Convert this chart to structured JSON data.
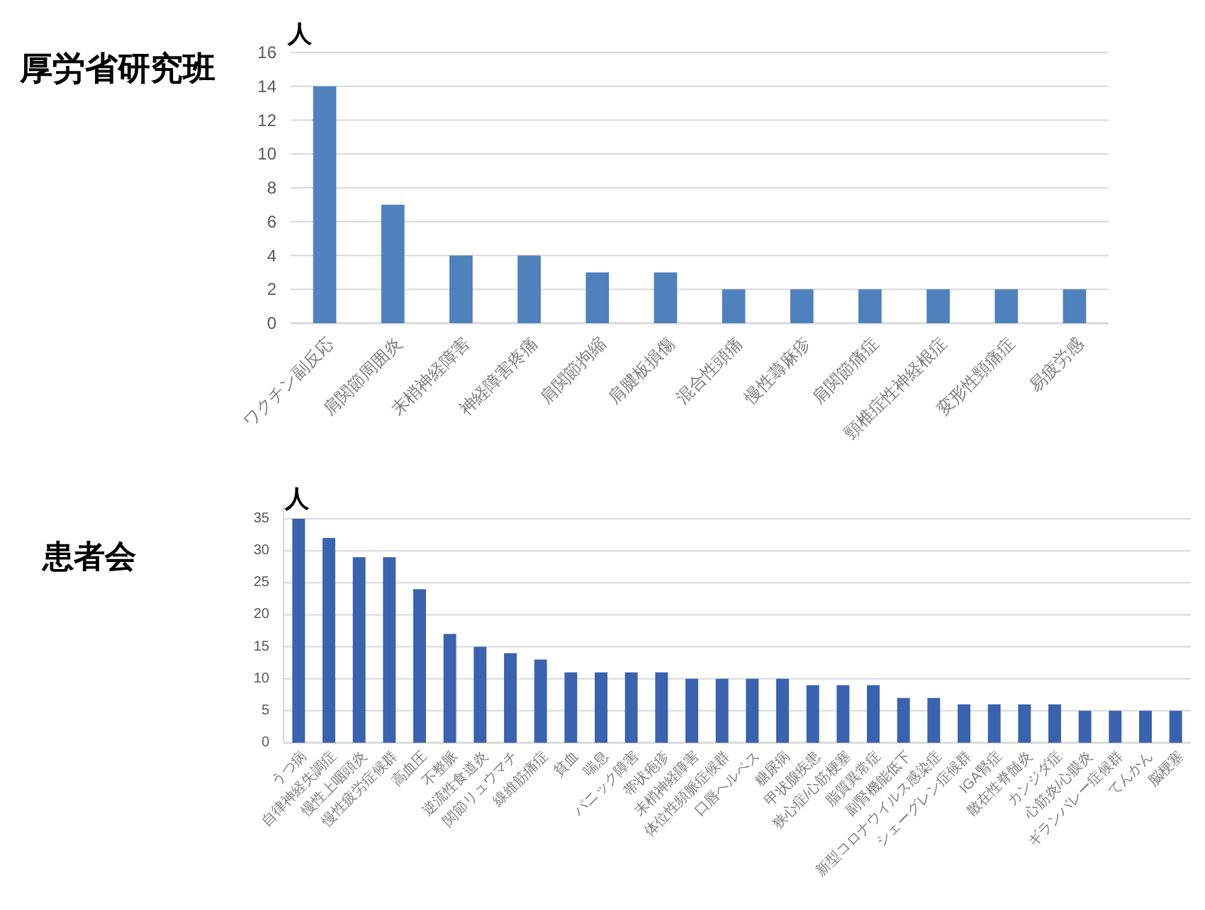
{
  "chart_data": [
    {
      "type": "bar",
      "title": "厚労省研究班",
      "ylabel": "人",
      "categories": [
        "ワクチン副反応",
        "肩関節周囲炎",
        "末梢神経障害",
        "神経障害疼痛",
        "肩関節拘縮",
        "肩腱板損傷",
        "混合性頭痛",
        "慢性蕁麻疹",
        "肩関節痛症",
        "頸椎症性神経根症",
        "変形性頸痛症",
        "易疲労感"
      ],
      "values": [
        14,
        7,
        4,
        4,
        3,
        3,
        2,
        2,
        2,
        2,
        2,
        2
      ],
      "color": "#4f81bd",
      "ylim": [
        0,
        16
      ],
      "yticks": [
        0,
        2,
        4,
        6,
        8,
        10,
        12,
        14,
        16
      ],
      "grid": "y"
    },
    {
      "type": "bar",
      "title": "患者会",
      "ylabel": "人",
      "categories": [
        "うつ病",
        "自律神経失調症",
        "慢性上咽頭炎",
        "慢性疲労症候群",
        "高血圧",
        "不整脈",
        "逆流性食道炎",
        "関節リュウマチ",
        "線維筋痛症",
        "貧血",
        "喘息",
        "パニック障害",
        "帯状疱疹",
        "末梢神経障害",
        "体位性頻脈症候群",
        "口唇ヘルペス",
        "糖尿病",
        "甲状腺疾患",
        "狭心症/心筋梗塞",
        "脂質異常症",
        "副腎機能低下",
        "新型コロナウイルス感染症",
        "シェーグレン症候群",
        "IGA腎症",
        "散在性脊髄炎",
        "カンジダ症",
        "心筋炎/心膜炎",
        "ギランバレー症候群",
        "てんかん",
        "脳梗塞"
      ],
      "values": [
        35,
        32,
        29,
        29,
        24,
        17,
        15,
        14,
        13,
        11,
        11,
        11,
        11,
        10,
        10,
        10,
        10,
        9,
        9,
        9,
        7,
        7,
        6,
        6,
        6,
        6,
        5,
        5,
        5,
        5
      ],
      "color": "#3a62ae",
      "ylim": [
        0,
        35
      ],
      "yticks": [
        0,
        5,
        10,
        15,
        20,
        25,
        30,
        35
      ],
      "grid": "y"
    }
  ]
}
